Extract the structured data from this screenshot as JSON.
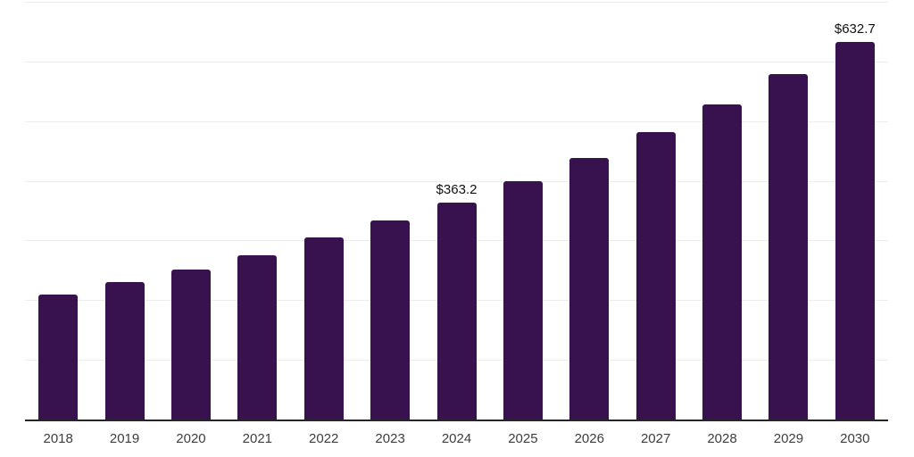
{
  "chart_data": {
    "type": "bar",
    "title": "",
    "xlabel": "",
    "ylabel": "",
    "categories": [
      "2018",
      "2019",
      "2020",
      "2021",
      "2022",
      "2023",
      "2024",
      "2025",
      "2026",
      "2027",
      "2028",
      "2029",
      "2030"
    ],
    "values": [
      210,
      230,
      251.5,
      275,
      305,
      334,
      363.2,
      400,
      438.5,
      481.5,
      528.5,
      579,
      632.7
    ],
    "value_labels": {
      "2024": "$363.2",
      "2030": "$632.7"
    },
    "ylim": [
      0,
      700
    ],
    "gridline_step": 100,
    "grid": "horizontal-only",
    "legend": "none",
    "y_axis_tick_labels_visible": false
  },
  "colors": {
    "background": "#ffffff",
    "bar": "#37124F",
    "gridline": "#ededed",
    "axis_line": "#262626",
    "tick_label": "#3d3d3d",
    "data_label": "#111111"
  }
}
